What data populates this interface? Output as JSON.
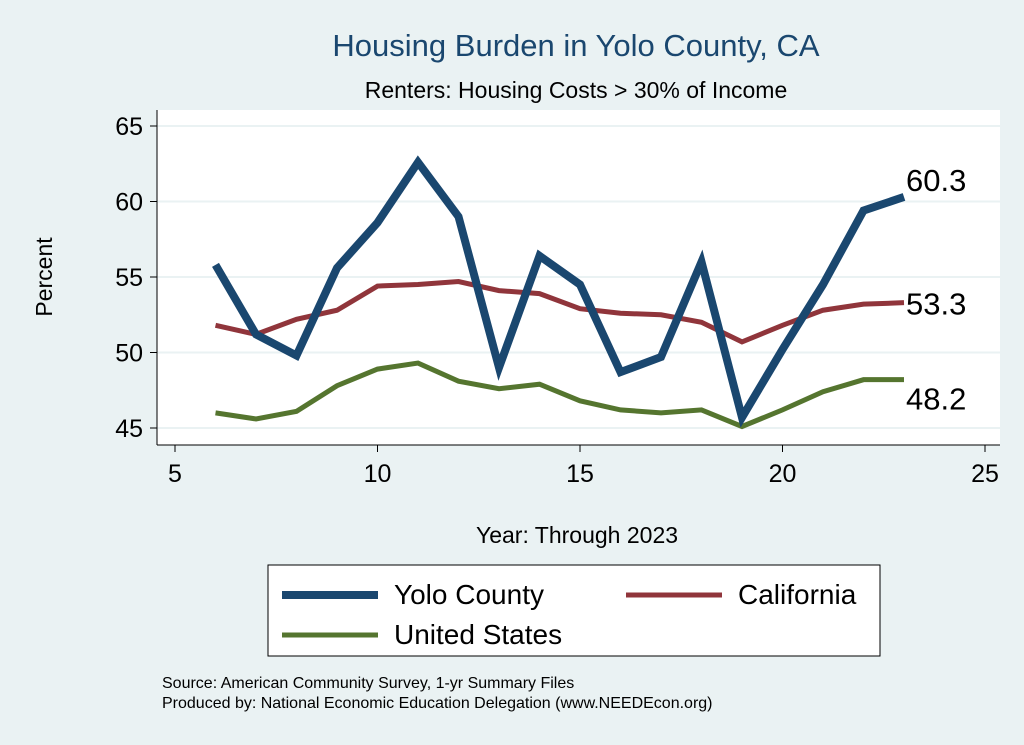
{
  "chart_data": {
    "type": "line",
    "title": "Housing Burden in Yolo County, CA",
    "subtitle": "Renters: Housing Costs > 30% of Income",
    "xlabel": "Year: Through 2023",
    "ylabel": "Percent",
    "xlim": [
      5,
      25
    ],
    "ylim": [
      45,
      65
    ],
    "xticks": [
      5,
      10,
      15,
      20,
      25
    ],
    "yticks": [
      45,
      50,
      55,
      60,
      65
    ],
    "grid": true,
    "legend_placement": "bottom",
    "x": [
      6,
      7,
      8,
      9,
      10,
      11,
      12,
      13,
      14,
      15,
      16,
      17,
      18,
      19,
      20,
      21,
      22,
      23
    ],
    "series": [
      {
        "name": "Yolo County",
        "color": "#1a476f",
        "end_label": "60.3",
        "values": [
          55.8,
          51.2,
          49.8,
          55.6,
          58.6,
          62.6,
          59.0,
          49.0,
          56.4,
          54.5,
          48.7,
          49.7,
          56.0,
          45.7,
          50.2,
          54.5,
          59.4,
          60.3
        ]
      },
      {
        "name": "California",
        "color": "#90353b",
        "end_label": "53.3",
        "values": [
          51.8,
          51.2,
          52.2,
          52.8,
          54.4,
          54.5,
          54.7,
          54.1,
          53.9,
          52.9,
          52.6,
          52.5,
          52.0,
          50.7,
          51.8,
          52.8,
          53.2,
          53.3
        ]
      },
      {
        "name": "United States",
        "color": "#55752f",
        "end_label": "48.2",
        "values": [
          46.0,
          45.6,
          46.1,
          47.8,
          48.9,
          49.3,
          48.1,
          47.6,
          47.9,
          46.8,
          46.2,
          46.0,
          46.2,
          45.1,
          46.2,
          47.4,
          48.2,
          48.2
        ]
      }
    ],
    "notes": [
      "Source: American Community Survey, 1-yr Summary Files",
      "Produced by: National Economic Education Delegation (www.NEEDEcon.org)"
    ]
  }
}
